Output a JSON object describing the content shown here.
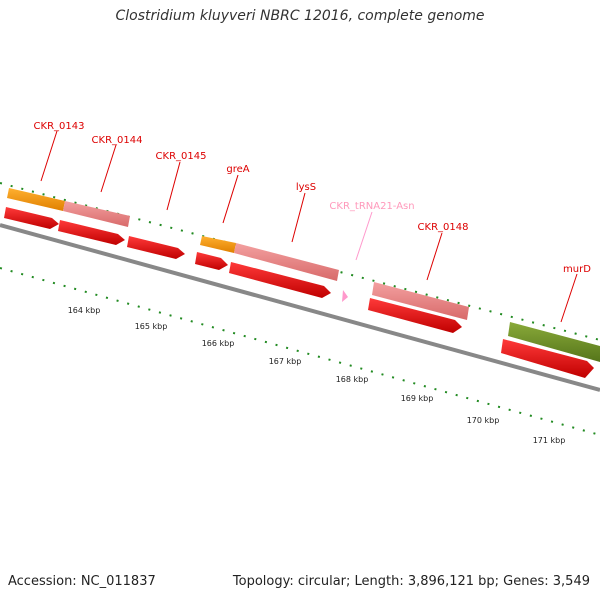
{
  "title": "Clostridium kluyveri NBRC 12016, complete genome",
  "footer": {
    "accession": "Accession: NC_011837",
    "summary": "Topology: circular; Length: 3,896,121 bp; Genes: 3,549"
  },
  "gene_labels": [
    {
      "id": "ckr-0143",
      "text": "CKR_0143",
      "color": "#dd0000"
    },
    {
      "id": "ckr-0144",
      "text": "CKR_0144",
      "color": "#dd0000"
    },
    {
      "id": "ckr-0145",
      "text": "CKR_0145",
      "color": "#dd0000"
    },
    {
      "id": "grea",
      "text": "greA",
      "color": "#dd0000"
    },
    {
      "id": "lyss",
      "text": "lysS",
      "color": "#dd0000"
    },
    {
      "id": "ckr-trna21-asn",
      "text": "CKR_tRNA21-Asn",
      "color": "#ff99bb"
    },
    {
      "id": "ckr-0148",
      "text": "CKR_0148",
      "color": "#dd0000"
    },
    {
      "id": "murd",
      "text": "murD",
      "color": "#dd0000"
    }
  ],
  "scale_labels": [
    "164 kbp",
    "165 kbp",
    "166 kbp",
    "167 kbp",
    "168 kbp",
    "169 kbp",
    "170 kbp",
    "171 kbp"
  ],
  "colors": {
    "cds": "#ff0000",
    "gene_pink": "#ee8080",
    "gene_orange": "#ff9900",
    "gene_olive": "#6b8e23",
    "trna": "#ff99cc",
    "backbone": "#888888",
    "ticks": "#228b22"
  }
}
